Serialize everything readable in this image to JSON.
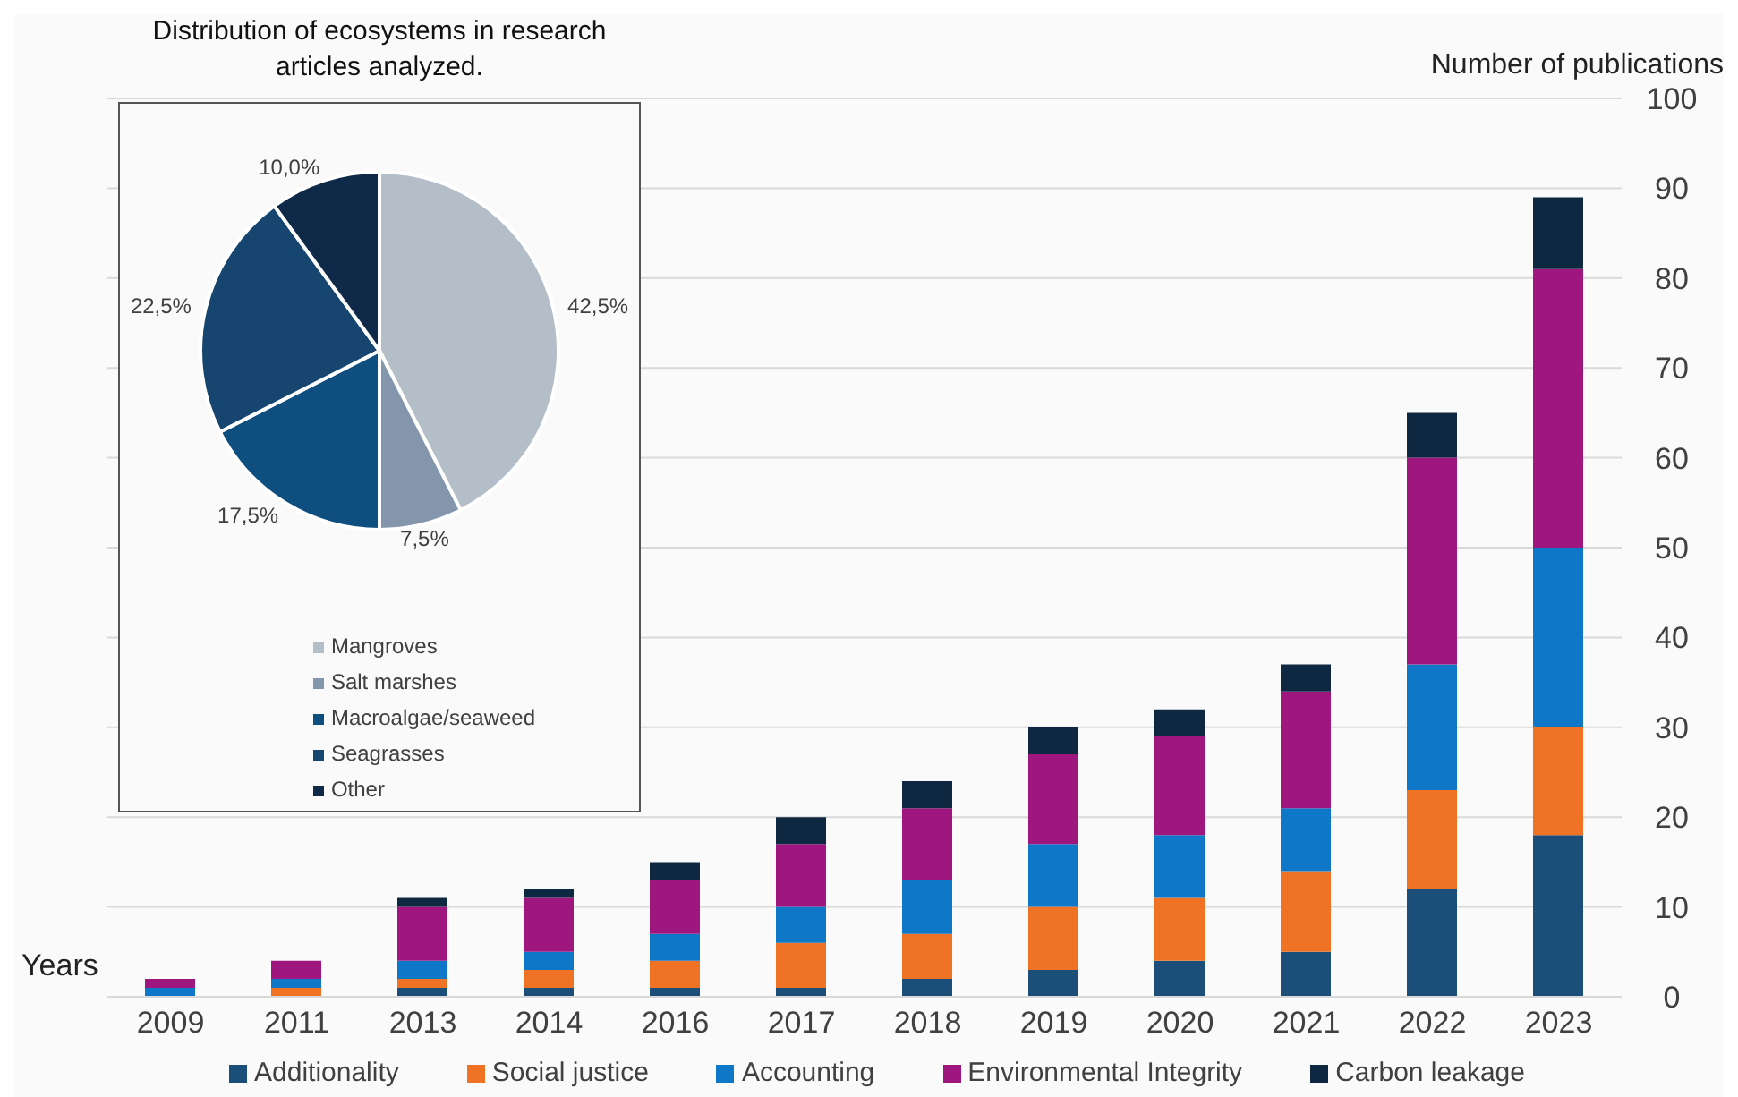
{
  "chart_data": [
    {
      "type": "bar",
      "stacked": true,
      "xlabel": "Years",
      "ylabel": "Number of publications",
      "categories": [
        "2009",
        "2011",
        "2013",
        "2014",
        "2016",
        "2017",
        "2018",
        "2019",
        "2020",
        "2021",
        "2022",
        "2023"
      ],
      "series": [
        {
          "name": "Additionality",
          "color": "#1b4f7a",
          "values": [
            0,
            0,
            1,
            1,
            1,
            1,
            2,
            3,
            4,
            5,
            12,
            18
          ]
        },
        {
          "name": "Social justice",
          "color": "#f07325",
          "values": [
            0,
            1,
            1,
            2,
            3,
            5,
            5,
            7,
            7,
            9,
            11,
            12
          ]
        },
        {
          "name": "Accounting",
          "color": "#0f77c8",
          "values": [
            1,
            1,
            2,
            2,
            3,
            4,
            6,
            7,
            7,
            7,
            14,
            20
          ]
        },
        {
          "name": "Environmental Integrity",
          "color": "#a0167f",
          "values": [
            1,
            2,
            6,
            6,
            6,
            7,
            8,
            10,
            11,
            13,
            23,
            31
          ]
        },
        {
          "name": "Carbon leakage",
          "color": "#0e2841",
          "values": [
            0,
            0,
            1,
            1,
            2,
            3,
            3,
            3,
            3,
            3,
            5,
            8
          ]
        }
      ],
      "ylim": [
        0,
        100
      ],
      "yticks": [
        0,
        10,
        20,
        30,
        40,
        50,
        60,
        70,
        80,
        90,
        100
      ],
      "grid": "y",
      "legend": "bottom"
    },
    {
      "type": "pie",
      "title": "Distribution of ecosystems in research articles analyzed.",
      "categories": [
        "Mangroves",
        "Salt marshes",
        "Macroalgae/seaweed",
        "Seagrasses",
        "Other"
      ],
      "values": [
        42.5,
        7.5,
        17.5,
        22.5,
        10
      ],
      "value_labels": [
        "42,5%",
        "7,5%",
        "17,5%",
        "22,5%",
        "10,0%"
      ],
      "colors": [
        "#b4bec9",
        "#8496ab",
        "#0f4f80",
        "#16466f",
        "#0e2a48"
      ],
      "legend": "bottom"
    }
  ]
}
